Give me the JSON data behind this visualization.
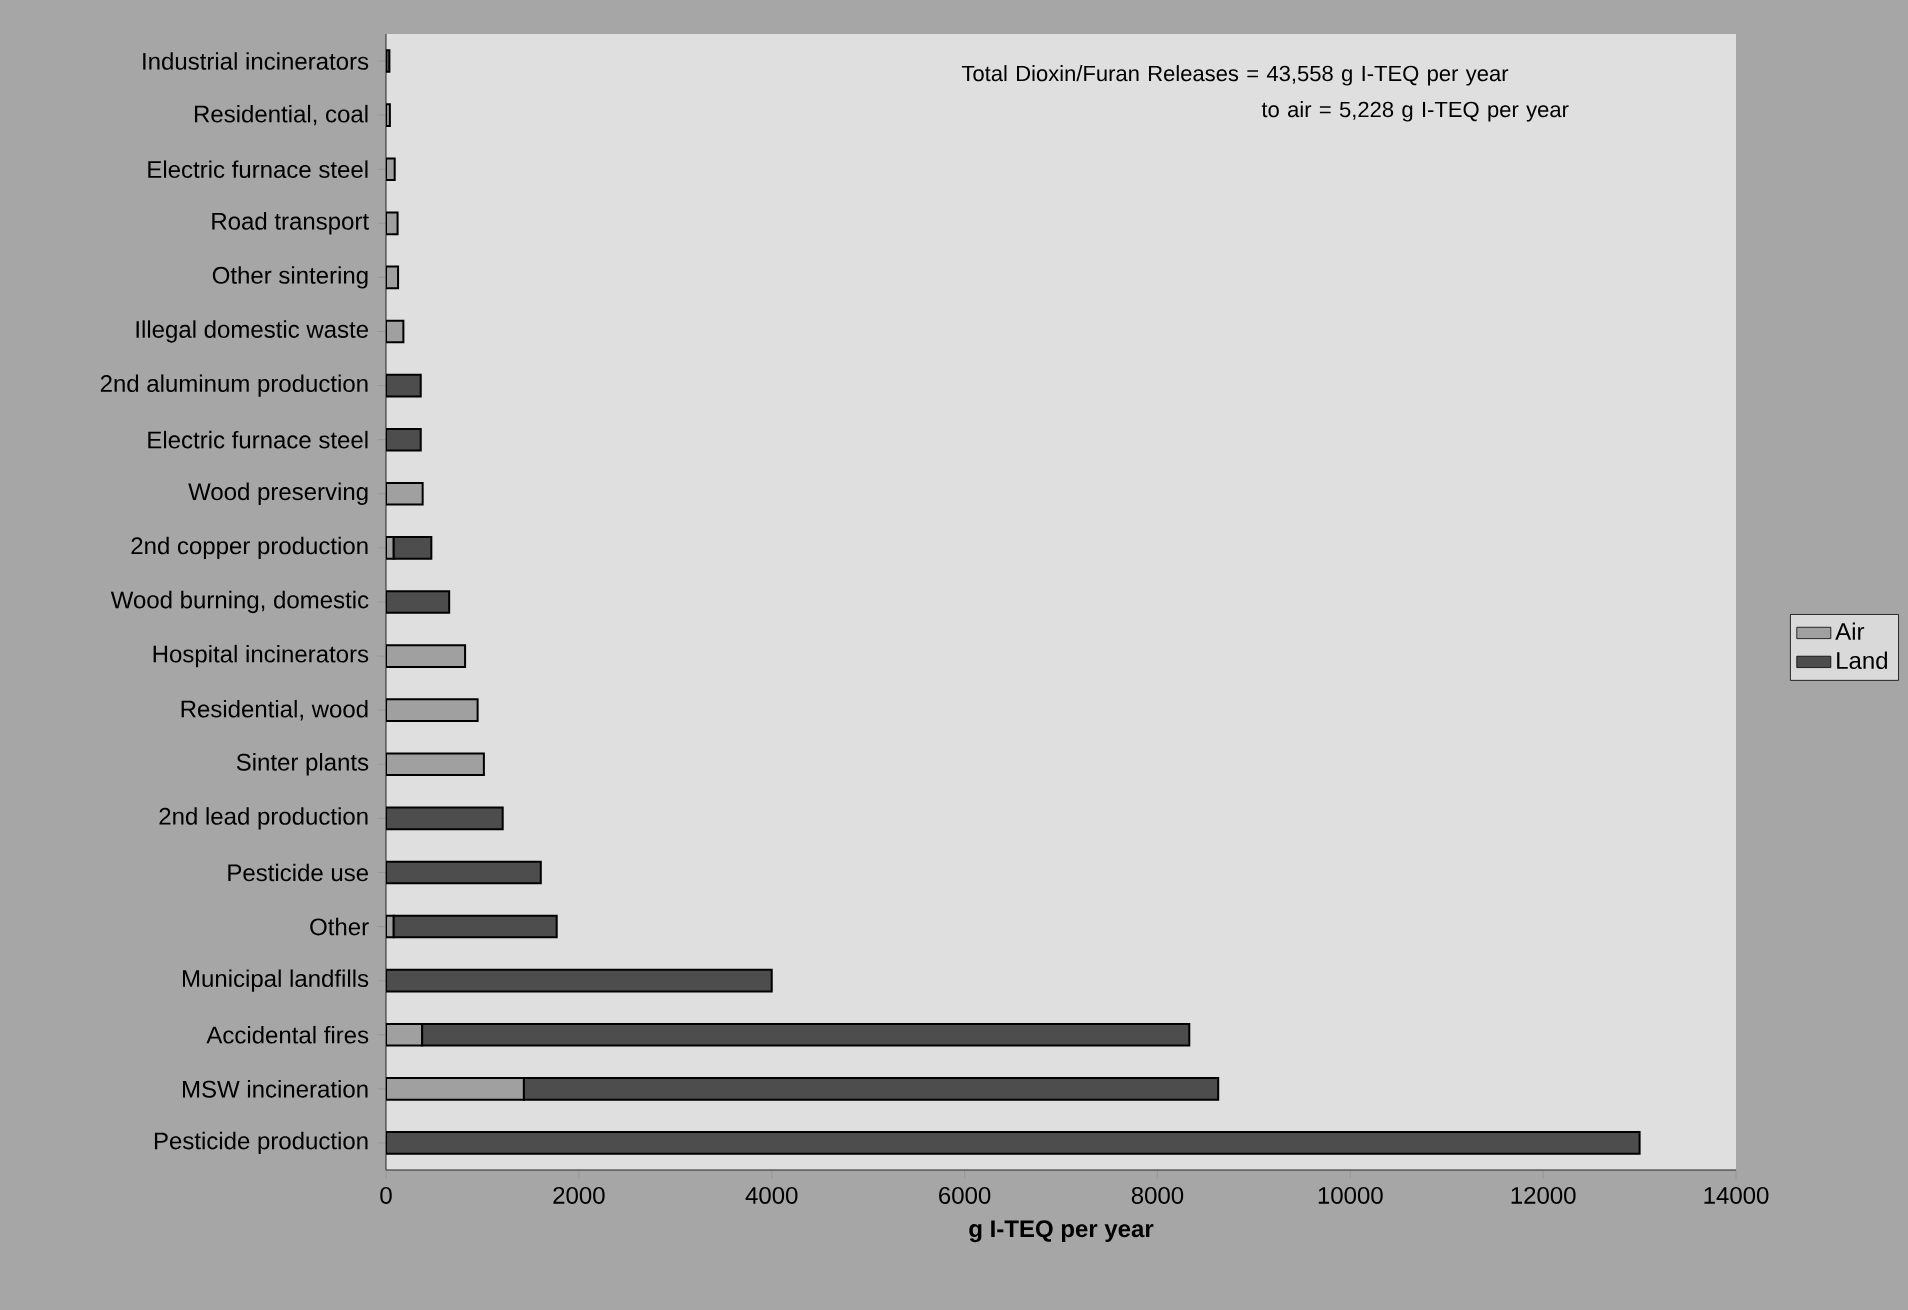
{
  "chart_data": {
    "type": "bar",
    "orientation": "horizontal",
    "stacked": true,
    "categories": [
      "Industrial incinerators",
      "Residential, coal",
      "Electric furnace steel",
      "Road transport",
      "Other sintering",
      "Illegal domestic waste",
      "2nd aluminum production",
      "Electric furnace steel",
      "Wood preserving",
      "2nd copper production",
      "Wood burning, domestic",
      "Hospital incinerators",
      "Residential, wood",
      "Sinter plants",
      "2nd lead production",
      "Pesticide use",
      "Other",
      "Municipal landfills",
      "Accidental fires",
      "MSW incineration",
      "Pesticide production"
    ],
    "series": [
      {
        "name": "Air",
        "color": "#a0a0a0",
        "values": [
          null,
          40,
          90,
          120,
          125,
          180,
          null,
          null,
          380,
          80,
          null,
          820,
          950,
          1015,
          null,
          null,
          80,
          null,
          375,
          1430,
          null
        ]
      },
      {
        "name": "Land",
        "color": "#4d4d4d",
        "values": [
          35,
          null,
          null,
          null,
          null,
          null,
          360,
          360,
          null,
          390,
          655,
          null,
          null,
          null,
          1210,
          1605,
          1690,
          4000,
          7955,
          7200,
          13000
        ]
      }
    ],
    "xlim": [
      0,
      14000
    ],
    "xticks": [
      0,
      2000,
      4000,
      6000,
      8000,
      10000,
      12000,
      14000
    ],
    "xlabel": "g I-TEQ per year",
    "legend": "right",
    "annotations": [
      "Total Dioxin/Furan Releases = 43,558 g I-TEQ per year",
      "to air =   5,228 g I-TEQ per year"
    ]
  }
}
